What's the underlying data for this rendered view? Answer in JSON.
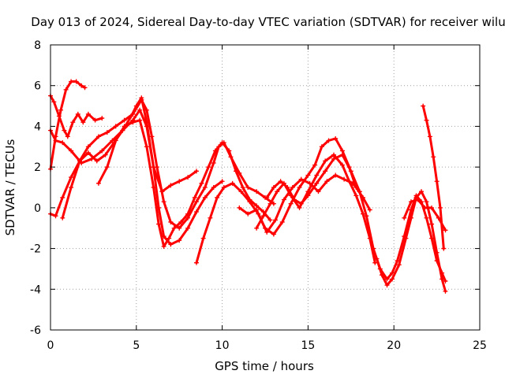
{
  "chart_data": {
    "type": "scatter",
    "title": "Day 013 of 2024, Sidereal Day-to-day VTEC variation (SDTVAR) for receiver wilu",
    "xlabel": "GPS time / hours",
    "ylabel": "SDTVAR / TECUs",
    "xlim": [
      0,
      25
    ],
    "ylim": [
      -6,
      8
    ],
    "xticks": [
      "0",
      "5",
      "10",
      "15",
      "20",
      "25"
    ],
    "yticks": [
      "-6",
      "-4",
      "-2",
      "0",
      "2",
      "4",
      "6",
      "8"
    ],
    "grid": true,
    "series_color": "#ff0000",
    "series": [
      {
        "name": "trace-1",
        "x": [
          0.0,
          0.3,
          0.6,
          0.9,
          1.2,
          1.5,
          1.8,
          2.0
        ],
        "y": [
          1.9,
          3.5,
          4.8,
          5.8,
          6.2,
          6.2,
          6.0,
          5.9
        ]
      },
      {
        "name": "trace-2",
        "x": [
          0.0,
          0.2,
          0.5,
          0.8,
          1.0,
          1.3,
          1.6,
          1.9,
          2.2,
          2.6,
          3.0
        ],
        "y": [
          5.5,
          5.2,
          4.5,
          3.8,
          3.5,
          4.2,
          4.6,
          4.2,
          4.6,
          4.3,
          4.4
        ]
      },
      {
        "name": "trace-3",
        "x": [
          0.0,
          0.3,
          0.7,
          1.2,
          1.8,
          2.4,
          3.0,
          3.6,
          4.2,
          4.8,
          5.2,
          5.6,
          6.0,
          6.5,
          7.0,
          7.5,
          8.0,
          8.5
        ],
        "y": [
          3.8,
          3.3,
          3.2,
          2.8,
          2.2,
          2.4,
          2.8,
          3.3,
          3.8,
          4.3,
          4.8,
          4.0,
          2.0,
          0.8,
          1.1,
          1.3,
          1.5,
          1.8
        ]
      },
      {
        "name": "trace-4",
        "x": [
          0.0,
          0.3,
          0.7,
          1.2,
          1.7,
          2.2,
          2.8,
          3.3,
          3.8,
          4.3,
          4.8,
          5.3,
          5.6,
          5.9,
          6.2,
          6.6,
          7.0,
          7.5,
          8.0,
          8.5,
          9.0,
          9.5,
          9.8,
          10.1,
          10.5,
          11.0,
          11.5,
          12.0,
          12.5,
          13.0
        ],
        "y": [
          -0.3,
          -0.4,
          0.5,
          1.5,
          2.3,
          3.0,
          3.5,
          3.7,
          4.0,
          4.3,
          4.6,
          5.3,
          4.8,
          3.5,
          2.0,
          0.3,
          -0.7,
          -1.0,
          -0.5,
          0.3,
          1.0,
          2.2,
          3.0,
          3.2,
          2.5,
          1.7,
          1.0,
          0.8,
          0.5,
          0.2
        ]
      },
      {
        "name": "trace-5",
        "x": [
          0.7,
          1.2,
          1.7,
          2.2,
          2.7,
          3.2,
          3.7,
          4.2,
          4.7,
          5.0,
          5.3,
          5.6,
          6.0,
          6.3,
          6.6,
          7.0,
          7.5,
          8.0,
          8.5,
          9.0,
          9.5,
          10.0
        ],
        "y": [
          -0.5,
          1.0,
          2.3,
          2.7,
          2.3,
          2.6,
          3.2,
          3.8,
          4.5,
          5.0,
          5.4,
          4.2,
          2.0,
          0.0,
          -1.4,
          -1.8,
          -1.6,
          -1.0,
          -0.2,
          0.5,
          1.0,
          1.3
        ]
      },
      {
        "name": "trace-6",
        "x": [
          2.8,
          3.3,
          3.8,
          4.3,
          4.8,
          5.2,
          5.6,
          6.0,
          6.3,
          6.6,
          6.9,
          7.2,
          7.6,
          8.0,
          8.4,
          8.8,
          9.2,
          9.6,
          10.0,
          10.4,
          10.8,
          11.2,
          11.6,
          12.0,
          12.4,
          12.8
        ],
        "y": [
          1.2,
          2.0,
          3.3,
          4.0,
          4.2,
          4.3,
          3.0,
          1.0,
          -0.8,
          -1.9,
          -1.5,
          -1.0,
          -0.7,
          -0.3,
          0.5,
          1.2,
          2.0,
          2.8,
          3.2,
          2.8,
          1.8,
          1.0,
          0.4,
          0.1,
          -0.2,
          -0.6
        ]
      },
      {
        "name": "trace-7",
        "x": [
          8.5,
          8.9,
          9.3,
          9.7,
          10.1,
          10.6,
          11.1,
          11.6,
          12.1,
          12.6,
          13.1,
          13.6,
          14.1,
          14.6,
          15.1,
          15.6,
          16.1,
          16.6,
          17.1,
          17.6,
          18.0
        ],
        "y": [
          -2.7,
          -1.5,
          -0.5,
          0.5,
          1.0,
          1.2,
          0.8,
          0.3,
          -0.3,
          -1.2,
          -0.6,
          0.4,
          1.0,
          1.4,
          1.2,
          0.8,
          1.3,
          1.6,
          1.4,
          1.2,
          0.8
        ]
      },
      {
        "name": "trace-8",
        "x": [
          11.0,
          11.5,
          12.0,
          12.5,
          13.0,
          13.5,
          14.0,
          14.5,
          15.0,
          15.4,
          15.8,
          16.2,
          16.6,
          17.0,
          17.4,
          17.8,
          18.2,
          18.6
        ],
        "y": [
          0.0,
          -0.3,
          -0.1,
          -1.0,
          -1.3,
          -0.7,
          0.2,
          1.0,
          1.6,
          2.1,
          3.0,
          3.3,
          3.4,
          2.8,
          2.0,
          1.0,
          0.5,
          -0.1
        ]
      },
      {
        "name": "trace-9",
        "x": [
          12.0,
          12.4,
          12.8,
          13.2,
          13.6,
          14.0,
          14.5,
          15.0,
          15.5,
          16.0,
          16.5,
          17.0,
          17.4,
          17.8,
          18.2,
          18.6,
          18.9
        ],
        "y": [
          -1.0,
          -0.4,
          0.2,
          0.8,
          1.2,
          0.6,
          0.0,
          0.8,
          1.6,
          2.3,
          2.6,
          2.1,
          1.3,
          0.6,
          -0.3,
          -1.5,
          -2.7
        ]
      },
      {
        "name": "trace-10",
        "x": [
          12.6,
          13.0,
          13.4,
          13.8,
          14.2,
          14.6,
          15.0,
          15.5,
          16.0,
          16.5,
          17.0,
          17.5,
          18.0,
          18.4,
          18.8,
          19.2,
          19.6,
          19.9,
          20.2,
          20.6,
          21.0,
          21.3,
          21.6,
          21.9,
          22.2,
          22.5,
          22.8,
          23.0
        ],
        "y": [
          0.5,
          1.0,
          1.3,
          1.0,
          0.4,
          0.2,
          0.6,
          1.2,
          1.8,
          2.4,
          2.6,
          1.8,
          0.8,
          -0.4,
          -2.0,
          -3.0,
          -3.5,
          -3.2,
          -2.6,
          -1.4,
          -0.1,
          0.6,
          0.3,
          -0.5,
          -1.5,
          -2.6,
          -3.2,
          -3.6
        ]
      },
      {
        "name": "trace-11",
        "x": [
          19.0,
          19.3,
          19.6,
          19.9,
          20.3,
          20.7,
          21.0,
          21.3,
          21.6,
          21.9,
          22.2,
          22.5,
          22.8,
          23.0
        ],
        "y": [
          -2.5,
          -3.3,
          -3.8,
          -3.5,
          -2.8,
          -1.5,
          -0.5,
          0.5,
          0.8,
          0.3,
          -0.8,
          -2.2,
          -3.5,
          -4.1
        ]
      },
      {
        "name": "trace-12",
        "x": [
          20.6,
          21.0,
          21.4,
          21.8,
          22.2,
          22.6,
          23.0
        ],
        "y": [
          -0.5,
          0.3,
          0.4,
          0.0,
          0.0,
          -0.5,
          -1.1
        ]
      },
      {
        "name": "trace-13",
        "x": [
          21.7,
          21.9,
          22.1,
          22.3,
          22.5,
          22.7,
          22.9
        ],
        "y": [
          5.0,
          4.3,
          3.5,
          2.5,
          1.3,
          0.0,
          -2.0
        ]
      }
    ]
  }
}
